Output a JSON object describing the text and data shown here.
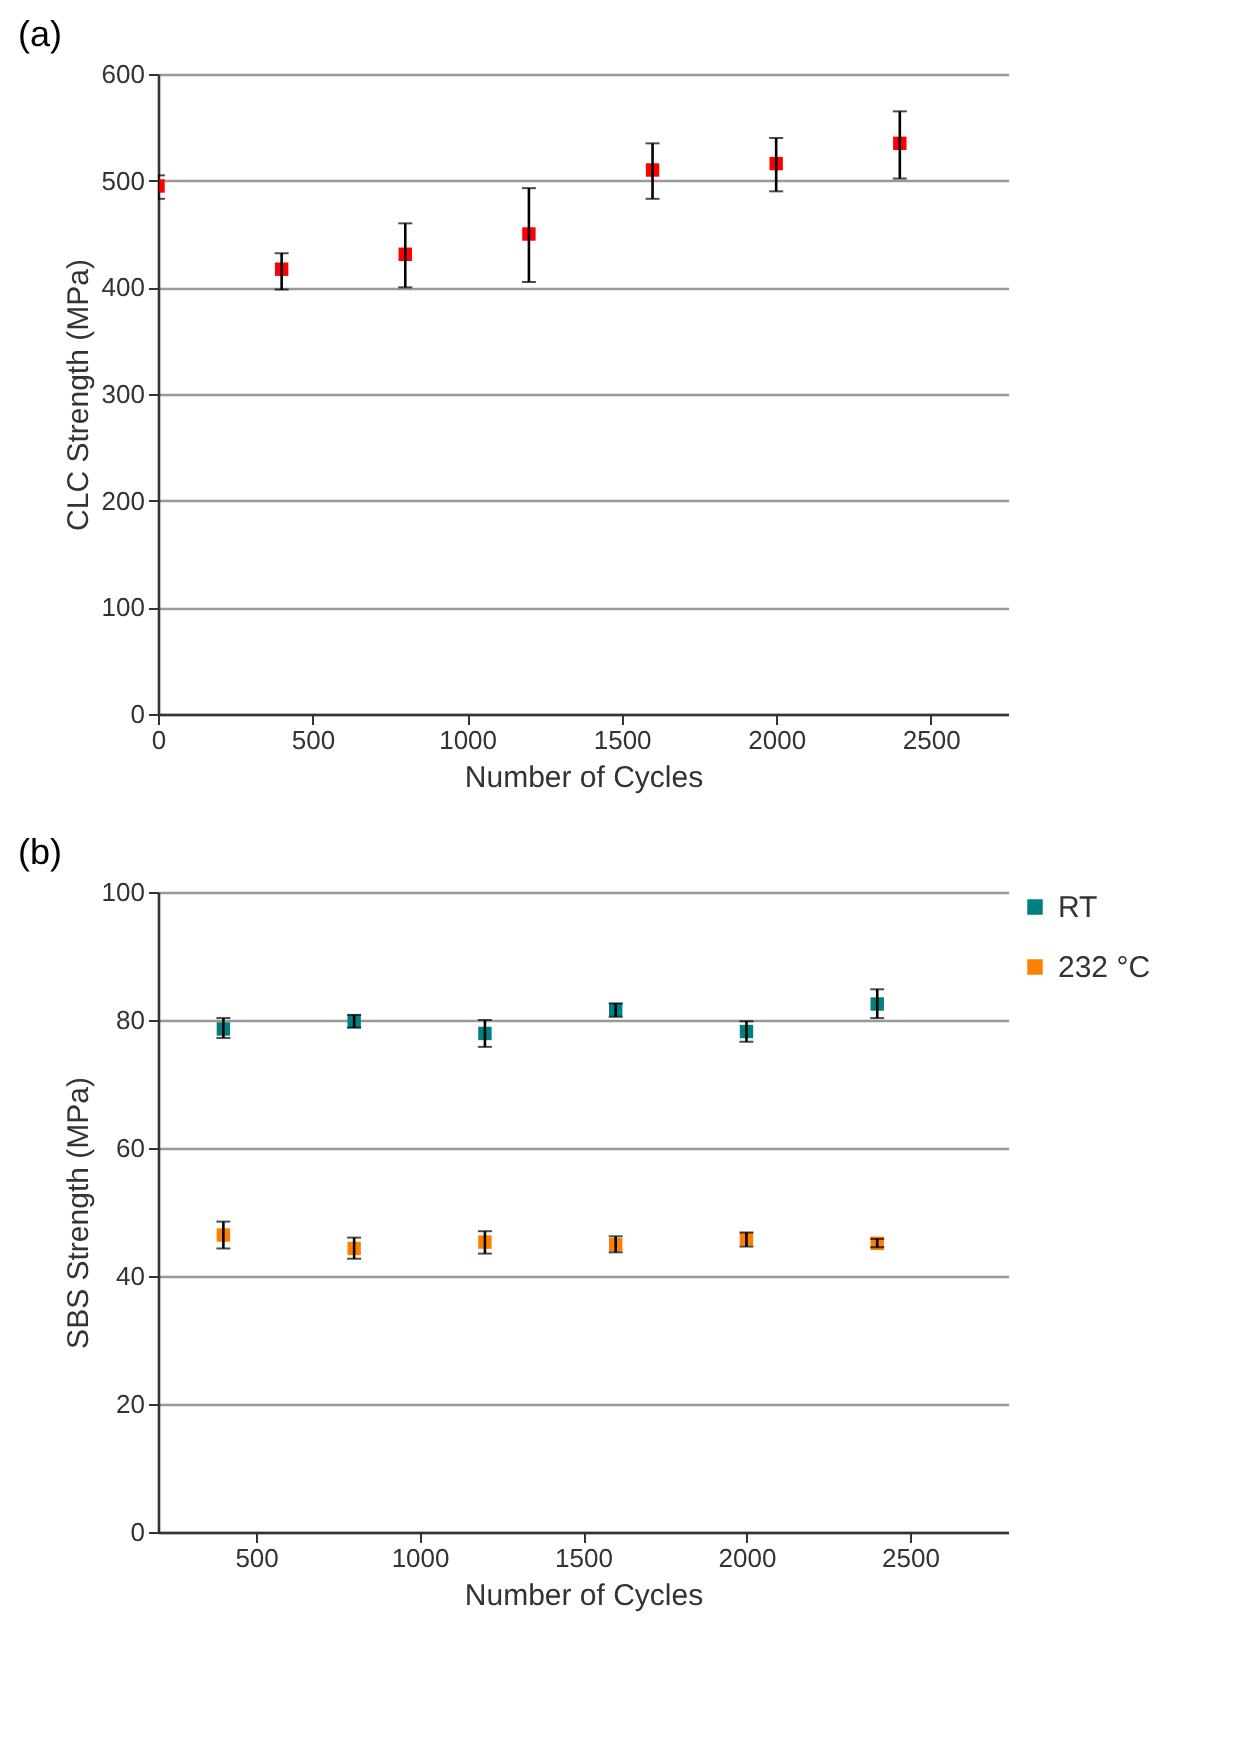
{
  "chart_data": [
    {
      "type": "scatter",
      "title": "(a)",
      "xlabel": "Number of Cycles",
      "ylabel": "CLC Strength (MPa)",
      "xlim": [
        0,
        2750
      ],
      "xticks": [
        0,
        500,
        1000,
        1500,
        2000,
        2500
      ],
      "ylim": [
        0,
        600
      ],
      "yticks": [
        0,
        100,
        200,
        300,
        400,
        500,
        600
      ],
      "grid": "y",
      "marker": "square",
      "series": [
        {
          "color": "#ff0000",
          "x": [
            0,
            400,
            800,
            1200,
            1600,
            2000,
            2400
          ],
          "values": [
            495,
            417,
            431,
            450,
            510,
            516,
            535
          ],
          "errors": [
            [
              483,
              505
            ],
            [
              398,
              432
            ],
            [
              400,
              460
            ],
            [
              405,
              493
            ],
            [
              483,
              535
            ],
            [
              490,
              540
            ],
            [
              502,
              565
            ]
          ]
        }
      ]
    },
    {
      "type": "scatter",
      "title": "(b)",
      "xlabel": "Number of Cycles",
      "ylabel": "SBS Strength (MPa)",
      "xlim": [
        200,
        2800
      ],
      "xticks": [
        500,
        1000,
        1500,
        2000,
        2500
      ],
      "ylim": [
        0,
        100
      ],
      "yticks": [
        0,
        20,
        40,
        60,
        80,
        100
      ],
      "grid": "y",
      "marker": "square",
      "legend": "top right",
      "series": [
        {
          "name": "RT",
          "color": "#008080",
          "x": [
            400,
            800,
            1200,
            1600,
            2000,
            2400
          ],
          "values": [
            78.6,
            79.8,
            77.9,
            81.6,
            78.2,
            82.5
          ],
          "errors": [
            [
              77.2,
              80.3
            ],
            [
              78.8,
              80.8
            ],
            [
              75.8,
              80
            ],
            [
              80.5,
              82.6
            ],
            [
              76.6,
              79.8
            ],
            [
              80.3,
              84.8
            ]
          ]
        },
        {
          "name": "232 °C",
          "color": "#ff8000",
          "x": [
            400,
            800,
            1200,
            1600,
            2000,
            2400
          ],
          "values": [
            46.4,
            44.3,
            45.3,
            44.9,
            45.8,
            45.1
          ],
          "errors": [
            [
              44.3,
              48.5
            ],
            [
              42.7,
              46
            ],
            [
              43.5,
              47
            ],
            [
              43.7,
              46.2
            ],
            [
              44.6,
              46.8
            ],
            [
              44.5,
              45.8
            ]
          ]
        }
      ]
    }
  ]
}
